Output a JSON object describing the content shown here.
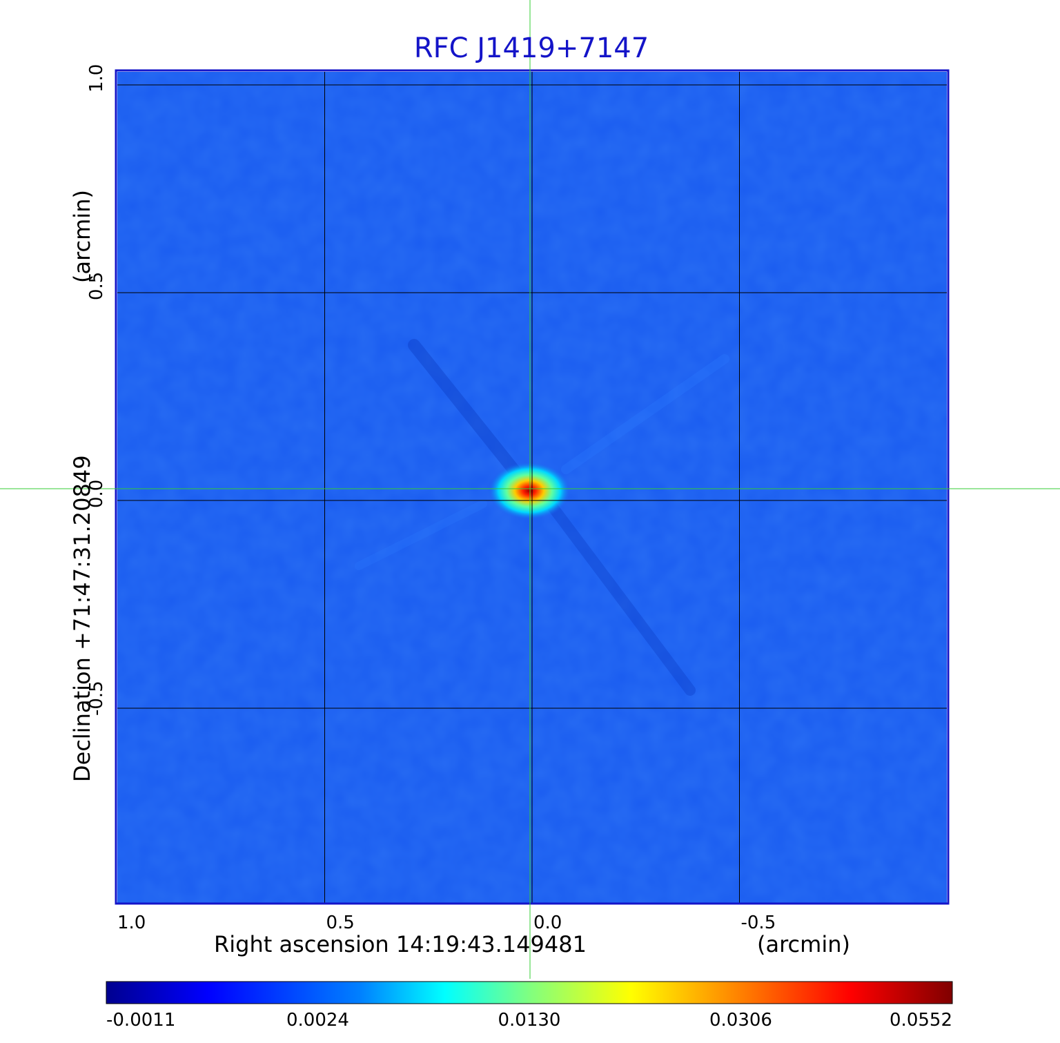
{
  "chart_data": {
    "type": "heatmap",
    "title": "RFC J1419+7147",
    "x_axis": {
      "label": "Right ascension  14:19:43.149481",
      "unit": "(arcmin)",
      "ticks": [
        {
          "value": 1.0,
          "label": "1.0"
        },
        {
          "value": 0.5,
          "label": "0.5"
        },
        {
          "value": 0.0,
          "label": "0.0"
        },
        {
          "value": -0.5,
          "label": "-0.5"
        }
      ],
      "range": [
        1.0,
        -1.0
      ]
    },
    "y_axis": {
      "label": "Declination  +71:47:31.20849",
      "unit": "(arcmin)",
      "ticks": [
        {
          "value": 1.0,
          "label": "1.0"
        },
        {
          "value": 0.5,
          "label": "0.5"
        },
        {
          "value": 0.0,
          "label": "0.0"
        },
        {
          "value": -0.5,
          "label": "-0.5"
        }
      ],
      "range": [
        -1.0,
        1.0
      ]
    },
    "grid": true,
    "crosshair": {
      "x": 0.0,
      "y": 0.0,
      "color": "#33cc33"
    },
    "source_peak": {
      "x": 0.0,
      "y": 0.0,
      "value": 0.0552
    },
    "colorbar": {
      "ticks": [
        "-0.0011",
        "0.0024",
        "0.0130",
        "0.0306",
        "0.0552"
      ],
      "colormap": [
        "#00008f",
        "#0000ff",
        "#0080ff",
        "#00ffff",
        "#80ff80",
        "#ffff00",
        "#ff8000",
        "#ff0000",
        "#800000"
      ]
    },
    "colors": {
      "frame": "#1414c8",
      "title": "#1414c8",
      "background_map": "#1a5cf0",
      "grid": "#000000"
    }
  }
}
